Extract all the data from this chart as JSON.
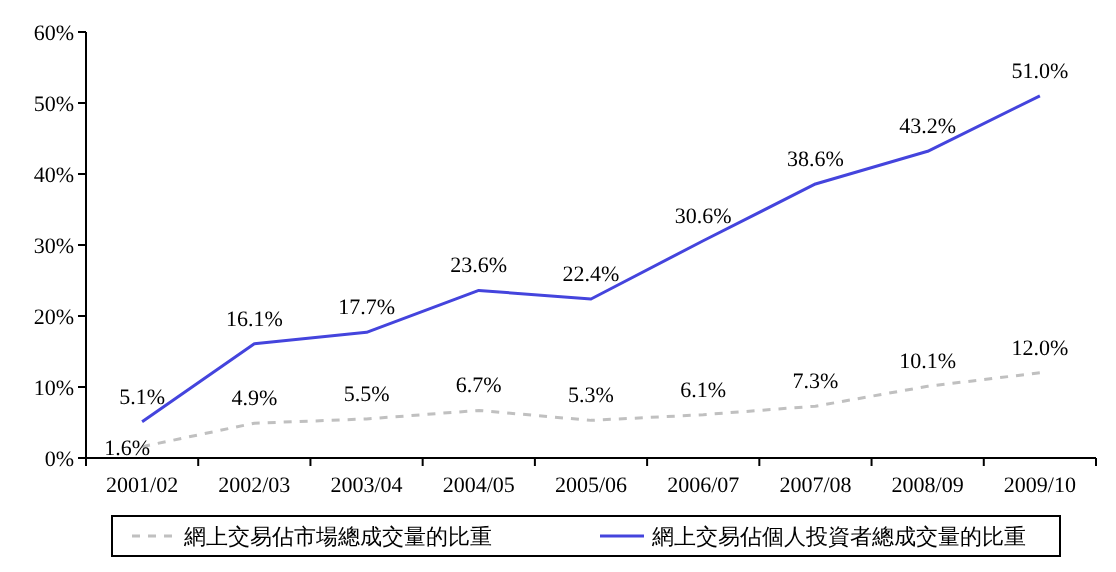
{
  "chart_data": {
    "type": "line",
    "categories": [
      "2001/02",
      "2002/03",
      "2003/04",
      "2004/05",
      "2005/06",
      "2006/07",
      "2007/08",
      "2008/09",
      "2009/10"
    ],
    "ylim": [
      0,
      60
    ],
    "yticks": [
      {
        "value": 0,
        "label": "0%"
      },
      {
        "value": 10,
        "label": "10%"
      },
      {
        "value": 20,
        "label": "20%"
      },
      {
        "value": 30,
        "label": "30%"
      },
      {
        "value": 40,
        "label": "40%"
      },
      {
        "value": 50,
        "label": "50%"
      },
      {
        "value": 60,
        "label": "60%"
      }
    ],
    "legend": "bottom",
    "series": [
      {
        "name": "網上交易佔市場總成交量的比重",
        "color": "#c0c0c0",
        "line_style": "dashed",
        "values": [
          1.6,
          4.9,
          5.5,
          6.7,
          5.3,
          6.1,
          7.3,
          10.1,
          12.0
        ],
        "value_labels": [
          "1.6%",
          "4.9%",
          "5.5%",
          "6.7%",
          "5.3%",
          "6.1%",
          "7.3%",
          "10.1%",
          "12.0%"
        ]
      },
      {
        "name": "網上交易佔個人投資者總成交量的比重",
        "color": "#4444dd",
        "line_style": "solid",
        "values": [
          5.1,
          16.1,
          17.7,
          23.6,
          22.4,
          30.6,
          38.6,
          43.2,
          51.0
        ],
        "value_labels": [
          "5.1%",
          "16.1%",
          "17.7%",
          "23.6%",
          "22.4%",
          "30.6%",
          "38.6%",
          "43.2%",
          "51.0%"
        ]
      }
    ]
  }
}
